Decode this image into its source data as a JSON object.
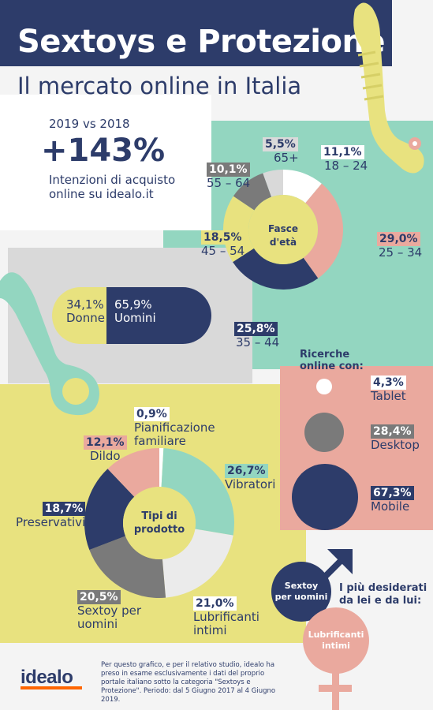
{
  "header": {
    "title": "Sextoys e Protezione",
    "subtitle": "Il mercato online in Italia"
  },
  "growth": {
    "period": "2019 vs 2018",
    "value": "+143%",
    "desc_line1": "Intenzioni di acquisto",
    "desc_line2": "online su idealo.it"
  },
  "gender": {
    "women_pct": "34,1%",
    "women_label": "Donne",
    "men_pct": "65,9%",
    "men_label": "Uomini"
  },
  "devices": {
    "heading_line1": "Ricerche",
    "heading_line2": "online con:",
    "items": [
      {
        "pct": "4,3%",
        "label": "Tablet"
      },
      {
        "pct": "28,4%",
        "label": "Desktop"
      },
      {
        "pct": "67,3%",
        "label": "Mobile"
      }
    ]
  },
  "desired": {
    "heading_line1": "I più desiderati",
    "heading_line2": "da lei e da lui:",
    "men_line1": "Sextoy",
    "men_line2": "per uomini",
    "women_line1": "Lubrificanti",
    "women_line2": "intimi"
  },
  "footer": {
    "logo": "idealo",
    "text": "Per questo grafico, e per il relativo studio, idealo ha preso in esame esclusivamente i dati del proprio portale italiano sotto la categoria \"Sextoys e Protezione\". Periodo: dal 5 Giugno 2017 al 4 Giugno 2019."
  },
  "colors": {
    "navy": "#2d3c6a",
    "mint": "#93d6c0",
    "pink": "#eaa99e",
    "yellow": "#e8e27f",
    "grey": "#7a7a7a",
    "light_grey": "#d9d9d9",
    "white": "#ffffff",
    "orange": "#ff6600"
  },
  "chart_data": [
    {
      "type": "pie",
      "center_label": "Fasce d'età",
      "categories": [
        "18 – 24",
        "25 – 34",
        "35 – 44",
        "45 – 54",
        "55 – 64",
        "65+"
      ],
      "values": [
        11.1,
        29.0,
        25.8,
        18.5,
        10.1,
        5.5
      ],
      "value_labels": [
        "11,1%",
        "29,0%",
        "25,8%",
        "18,5%",
        "10,1%",
        "5,5%"
      ],
      "colors": [
        "#ffffff",
        "#eaa99e",
        "#2d3c6a",
        "#e8e27f",
        "#7a7a7a",
        "#d9d9d9"
      ]
    },
    {
      "type": "pie",
      "center_label_line1": "Tipi di",
      "center_label_line2": "prodotto",
      "categories": [
        "Pianificazione familiare",
        "Vibratori",
        "Lubrificanti intimi",
        "Sextoy per uomini",
        "Preservativi",
        "Dildo"
      ],
      "values": [
        0.9,
        26.7,
        21.0,
        20.5,
        18.7,
        12.1
      ],
      "value_labels": [
        "0,9%",
        "26,7%",
        "21,0%",
        "20,5%",
        "18,7%",
        "12,1%"
      ],
      "colors": [
        "#ffffff",
        "#93d6c0",
        "#ebebeb",
        "#7a7a7a",
        "#2d3c6a",
        "#eaa99e"
      ]
    },
    {
      "type": "bar",
      "categories": [
        "Tablet",
        "Desktop",
        "Mobile"
      ],
      "values": [
        4.3,
        28.4,
        67.3
      ]
    },
    {
      "type": "bar",
      "categories": [
        "Donne",
        "Uomini"
      ],
      "values": [
        34.1,
        65.9
      ]
    }
  ]
}
